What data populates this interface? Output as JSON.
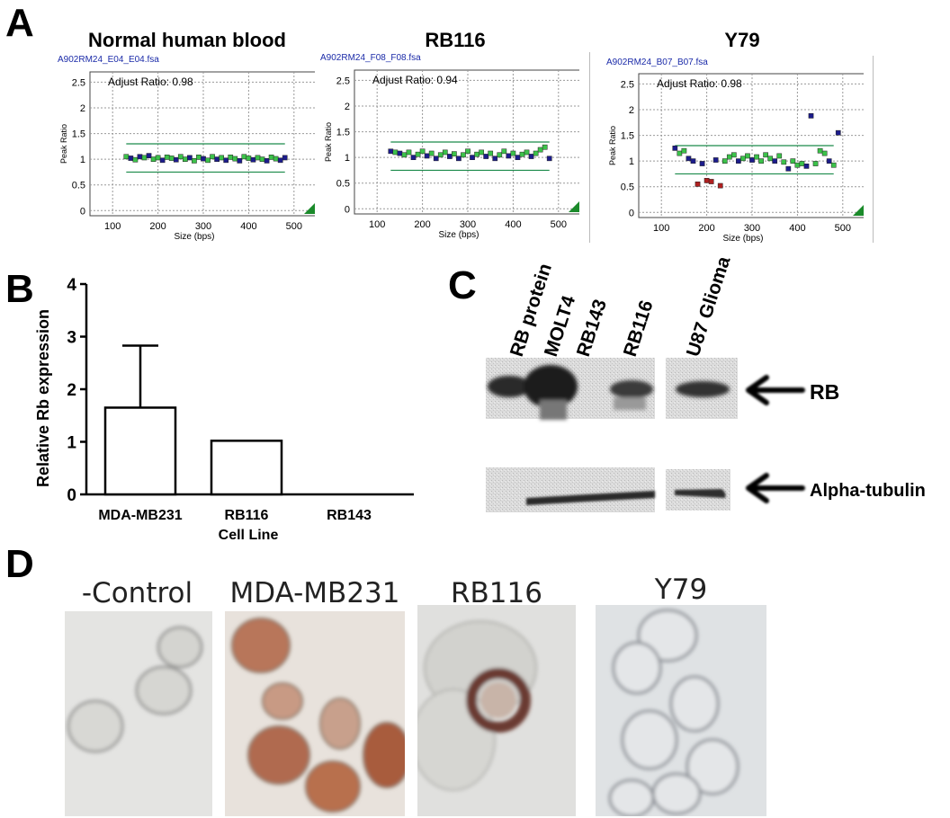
{
  "panels": {
    "a": "A",
    "b": "B",
    "c": "C",
    "d": "D"
  },
  "scatter_common": {
    "y_ticks": [
      "0",
      "0.5",
      "1",
      "1.5",
      "2",
      "2.5"
    ],
    "x_ticks": [
      "100",
      "200",
      "300",
      "400",
      "500"
    ],
    "ylabel": "Peak Ratio",
    "xlabel": "Size (bps)"
  },
  "chart_data": [
    {
      "type": "scatter",
      "title": "Normal human blood",
      "filename": "A902RM24_E04_E04.fsa",
      "annotation": "Adjust Ratio: 0.98",
      "xlabel": "Size (bps)",
      "ylabel": "Peak Ratio",
      "xlim": [
        50,
        550
      ],
      "ylim": [
        -0.1,
        2.7
      ],
      "threshold_lines": [
        0.75,
        1.3
      ],
      "points": [
        [
          130,
          1.05
        ],
        [
          140,
          1.02
        ],
        [
          150,
          0.99
        ],
        [
          160,
          1.05
        ],
        [
          170,
          1.03
        ],
        [
          180,
          1.07
        ],
        [
          190,
          1.0
        ],
        [
          200,
          1.03
        ],
        [
          210,
          0.98
        ],
        [
          220,
          1.04
        ],
        [
          230,
          1.02
        ],
        [
          240,
          0.99
        ],
        [
          250,
          1.05
        ],
        [
          260,
          1.0
        ],
        [
          270,
          1.03
        ],
        [
          280,
          0.97
        ],
        [
          290,
          1.04
        ],
        [
          300,
          1.01
        ],
        [
          310,
          0.98
        ],
        [
          320,
          1.05
        ],
        [
          330,
          1.0
        ],
        [
          340,
          1.03
        ],
        [
          350,
          0.98
        ],
        [
          360,
          1.04
        ],
        [
          370,
          1.01
        ],
        [
          380,
          0.97
        ],
        [
          390,
          1.05
        ],
        [
          400,
          1.02
        ],
        [
          410,
          0.99
        ],
        [
          420,
          1.03
        ],
        [
          430,
          1.0
        ],
        [
          440,
          0.97
        ],
        [
          450,
          1.04
        ],
        [
          460,
          1.01
        ],
        [
          470,
          0.98
        ],
        [
          480,
          1.03
        ]
      ],
      "colors": [
        "g",
        "b",
        "g",
        "b",
        "g",
        "b",
        "g",
        "g",
        "b",
        "g",
        "g",
        "b",
        "g",
        "g",
        "b",
        "g",
        "g",
        "b",
        "g",
        "g",
        "b",
        "g",
        "b",
        "g",
        "g",
        "b",
        "g",
        "g",
        "b",
        "g",
        "g",
        "b",
        "g",
        "g",
        "b",
        "b"
      ]
    },
    {
      "type": "scatter",
      "title": "RB116",
      "filename": "A902RM24_F08_F08.fsa",
      "annotation": "Adjust Ratio: 0.94",
      "xlabel": "Size (bps)",
      "ylabel": "Peak Ratio",
      "xlim": [
        50,
        550
      ],
      "ylim": [
        -0.1,
        2.7
      ],
      "threshold_lines": [
        0.75,
        1.3
      ],
      "points": [
        [
          130,
          1.12
        ],
        [
          140,
          1.1
        ],
        [
          150,
          1.08
        ],
        [
          160,
          1.05
        ],
        [
          170,
          1.1
        ],
        [
          180,
          1.0
        ],
        [
          190,
          1.06
        ],
        [
          200,
          1.12
        ],
        [
          210,
          1.03
        ],
        [
          220,
          1.08
        ],
        [
          230,
          0.98
        ],
        [
          240,
          1.05
        ],
        [
          250,
          1.1
        ],
        [
          260,
          1.02
        ],
        [
          270,
          1.07
        ],
        [
          280,
          0.98
        ],
        [
          290,
          1.05
        ],
        [
          300,
          1.12
        ],
        [
          310,
          1.0
        ],
        [
          320,
          1.06
        ],
        [
          330,
          1.1
        ],
        [
          340,
          1.02
        ],
        [
          350,
          1.08
        ],
        [
          360,
          0.98
        ],
        [
          370,
          1.05
        ],
        [
          380,
          1.12
        ],
        [
          390,
          1.03
        ],
        [
          400,
          1.08
        ],
        [
          410,
          1.0
        ],
        [
          420,
          1.06
        ],
        [
          430,
          1.1
        ],
        [
          440,
          1.02
        ],
        [
          450,
          1.08
        ],
        [
          460,
          1.15
        ],
        [
          470,
          1.2
        ],
        [
          480,
          0.98
        ]
      ],
      "colors": [
        "b",
        "g",
        "b",
        "g",
        "g",
        "b",
        "g",
        "g",
        "b",
        "g",
        "b",
        "g",
        "g",
        "b",
        "g",
        "b",
        "g",
        "g",
        "b",
        "g",
        "g",
        "b",
        "g",
        "b",
        "g",
        "g",
        "b",
        "g",
        "b",
        "g",
        "g",
        "b",
        "g",
        "g",
        "g",
        "b"
      ]
    },
    {
      "type": "scatter",
      "title": "Y79",
      "filename": "A902RM24_B07_B07.fsa",
      "annotation": "Adjust Ratio: 0.98",
      "xlabel": "Size (bps)",
      "ylabel": "Peak Ratio",
      "xlim": [
        50,
        550
      ],
      "ylim": [
        -0.1,
        2.7
      ],
      "threshold_lines": [
        0.75,
        1.3
      ],
      "points": [
        [
          130,
          1.25
        ],
        [
          140,
          1.15
        ],
        [
          150,
          1.2
        ],
        [
          160,
          1.05
        ],
        [
          170,
          1.0
        ],
        [
          180,
          0.55
        ],
        [
          190,
          0.95
        ],
        [
          200,
          0.62
        ],
        [
          210,
          0.6
        ],
        [
          220,
          1.02
        ],
        [
          230,
          0.52
        ],
        [
          240,
          1.0
        ],
        [
          250,
          1.08
        ],
        [
          260,
          1.12
        ],
        [
          270,
          1.0
        ],
        [
          280,
          1.05
        ],
        [
          290,
          1.1
        ],
        [
          300,
          1.02
        ],
        [
          310,
          1.08
        ],
        [
          320,
          1.0
        ],
        [
          330,
          1.12
        ],
        [
          340,
          1.05
        ],
        [
          350,
          1.0
        ],
        [
          360,
          1.1
        ],
        [
          370,
          0.98
        ],
        [
          380,
          0.85
        ],
        [
          390,
          1.0
        ],
        [
          400,
          0.92
        ],
        [
          410,
          0.95
        ],
        [
          420,
          0.9
        ],
        [
          430,
          1.88
        ],
        [
          440,
          0.95
        ],
        [
          450,
          1.2
        ],
        [
          460,
          1.15
        ],
        [
          470,
          1.0
        ],
        [
          480,
          0.92
        ],
        [
          490,
          1.55
        ]
      ],
      "colors": [
        "b",
        "g",
        "g",
        "b",
        "b",
        "r",
        "b",
        "r",
        "r",
        "b",
        "r",
        "g",
        "g",
        "g",
        "b",
        "g",
        "g",
        "b",
        "g",
        "g",
        "g",
        "g",
        "b",
        "g",
        "g",
        "b",
        "g",
        "g",
        "g",
        "b",
        "b",
        "g",
        "g",
        "g",
        "b",
        "g",
        "b"
      ]
    },
    {
      "type": "bar",
      "title": "",
      "categories": [
        "MDA-MB231",
        "RB116",
        "RB143"
      ],
      "values": [
        1.65,
        1.02,
        0
      ],
      "error_up": [
        1.18,
        0,
        0
      ],
      "xlabel": "Cell Line",
      "ylabel": "Relative Rb expression",
      "ylim": [
        0,
        4
      ],
      "y_ticks": [
        "0",
        "1",
        "2",
        "3",
        "4"
      ]
    }
  ],
  "western": {
    "lanes": [
      "RB protein",
      "MOLT4",
      "RB143",
      "RB116",
      "U87 Glioma"
    ],
    "rows": [
      "RB",
      "Alpha-tubulin"
    ]
  },
  "micrographs": [
    "-Control",
    "MDA-MB231",
    "RB116",
    "Y79"
  ]
}
